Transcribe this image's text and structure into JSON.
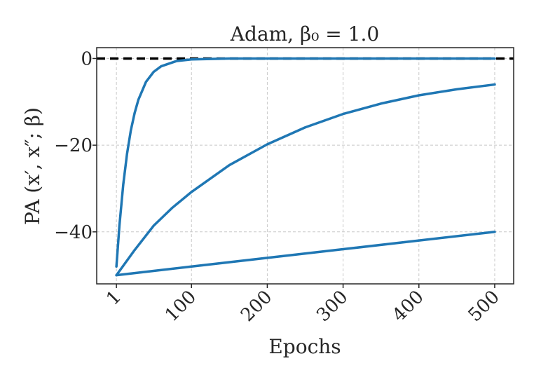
{
  "chart_data": {
    "type": "line",
    "title": "Adam, β₀ = 1.0",
    "xlabel": "Epochs",
    "ylabel": "PA (x′, x″; β)",
    "xlim": [
      -25,
      525
    ],
    "ylim": [
      -52,
      2.5
    ],
    "xticks": [
      1,
      100,
      200,
      300,
      400,
      500
    ],
    "xtick_labels": [
      "1",
      "100",
      "200",
      "300",
      "400",
      "500"
    ],
    "yticks": [
      0,
      -20,
      -40
    ],
    "ytick_labels": [
      "0",
      "−20",
      "−40"
    ],
    "grid": true,
    "reference_line": {
      "y": 0,
      "style": "dashed",
      "color": "#000000"
    },
    "series_color": "#1f77b4",
    "series": [
      {
        "x": [
          1,
          5,
          10,
          15,
          20,
          25,
          30,
          40,
          50,
          60,
          80,
          100,
          150,
          200,
          300,
          400,
          500
        ],
        "y": [
          -48,
          -38.5,
          -29.1,
          -22,
          -16.6,
          -12.6,
          -9.5,
          -5.4,
          -3.1,
          -1.8,
          -0.6,
          -0.2,
          0,
          0,
          0,
          0,
          0
        ]
      },
      {
        "x": [
          1,
          25,
          50,
          75,
          100,
          150,
          200,
          250,
          300,
          350,
          400,
          450,
          500
        ],
        "y": [
          -50,
          -44.2,
          -38.6,
          -34.4,
          -30.8,
          -24.6,
          -19.8,
          -15.9,
          -12.8,
          -10.4,
          -8.5,
          -7.1,
          -6
        ]
      },
      {
        "x": [
          1,
          100,
          200,
          300,
          400,
          500
        ],
        "y": [
          -50,
          -48,
          -46,
          -44,
          -42,
          -40
        ]
      }
    ]
  }
}
